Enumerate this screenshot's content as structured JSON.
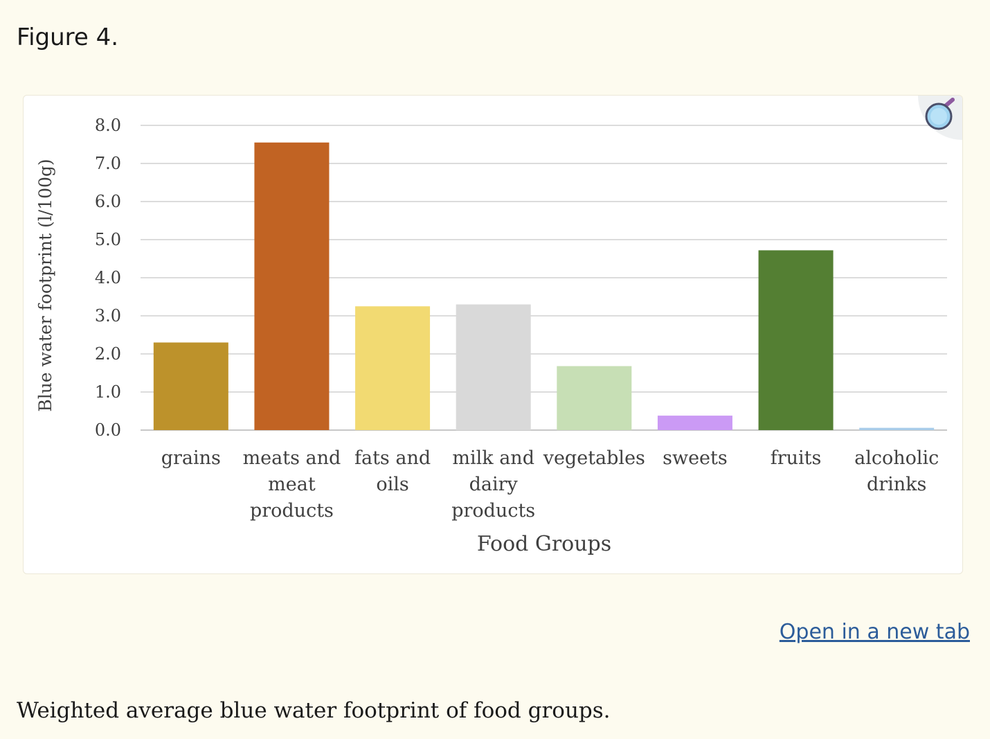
{
  "figure": {
    "label": "Figure 4.",
    "caption": "Weighted average blue water footprint of food groups.",
    "open_link": "Open in a new tab",
    "zoom_icon": "magnifier-icon"
  },
  "chart_data": {
    "type": "bar",
    "title": "",
    "xlabel": "Food Groups",
    "ylabel": "Blue water footprint (l/100g)",
    "ylim": [
      0,
      8
    ],
    "yticks": [
      "0.0",
      "1.0",
      "2.0",
      "3.0",
      "4.0",
      "5.0",
      "6.0",
      "7.0",
      "8.0"
    ],
    "grid": true,
    "categories": [
      [
        "grains"
      ],
      [
        "meats and",
        "meat",
        "products"
      ],
      [
        "fats and",
        "oils"
      ],
      [
        "milk and",
        "dairy",
        "products"
      ],
      [
        "vegetables"
      ],
      [
        "sweets"
      ],
      [
        "fruits"
      ],
      [
        "alcoholic",
        "drinks"
      ]
    ],
    "values": [
      2.3,
      7.55,
      3.25,
      3.3,
      1.68,
      0.38,
      4.72,
      0.06
    ],
    "colors": [
      "#bd922b",
      "#c16323",
      "#f2da72",
      "#d9d9d9",
      "#c7dfb5",
      "#cb9af5",
      "#547f33",
      "#a9cdea"
    ]
  }
}
